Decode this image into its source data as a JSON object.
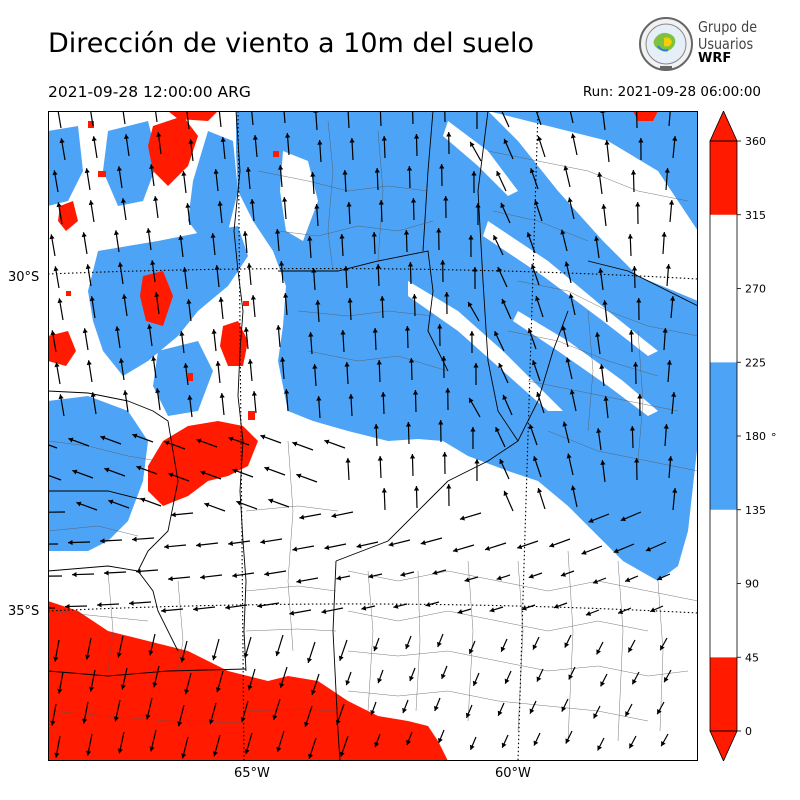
{
  "title": "Dirección de viento a 10m del suelo",
  "valid_time": "2021-09-28 12:00:00 ARG",
  "run_label": "Run: 2021-09-28 06:00:00",
  "logo": {
    "line1": "Grupo de",
    "line2": "Usuarios",
    "line3": "WRF",
    "icon": "wrf-globe-icon"
  },
  "map": {
    "lat_labels": [
      "30°S",
      "35°S"
    ],
    "lon_labels": [
      "65°W",
      "60°W"
    ],
    "colors": {
      "red": "#ff1a00",
      "blue": "#4da3f5",
      "white": "#ffffff",
      "border": "#000000"
    }
  },
  "colorbar": {
    "ticks": [
      "0",
      "45",
      "90",
      "135",
      "180",
      "225",
      "270",
      "315",
      "360"
    ],
    "unit": "°",
    "bands": [
      {
        "from": 0,
        "to": 45,
        "color": "#ff1a00"
      },
      {
        "from": 45,
        "to": 135,
        "color": "#ffffff"
      },
      {
        "from": 135,
        "to": 225,
        "color": "#4da3f5"
      },
      {
        "from": 225,
        "to": 315,
        "color": "#ffffff"
      },
      {
        "from": 315,
        "to": 360,
        "color": "#ff1a00"
      }
    ]
  }
}
